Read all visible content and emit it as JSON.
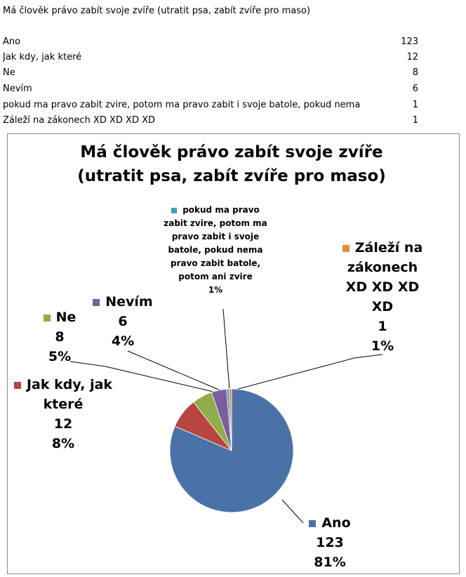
{
  "table": {
    "title": "Má člověk právo zabít svoje zvíře (utratit psa, zabít zvíře pro maso)",
    "rows": [
      [
        "Ano",
        123
      ],
      [
        "Jak kdy, jak které",
        12
      ],
      [
        "Ne",
        8
      ],
      [
        "Nevím",
        6
      ],
      [
        "pokud ma pravo zabit zvire, potom ma pravo zabit i svoje batole, pokud nema",
        1
      ],
      [
        "Záleží na zákonech XD XD XD XD",
        1
      ]
    ]
  },
  "chart_data": {
    "type": "pie",
    "title": "Má člověk právo zabít svoje zvíře (utratit psa, zabít zvíře pro maso)",
    "categories": [
      "Ano",
      "Jak kdy, jak které",
      "Ne",
      "Nevím",
      "pokud ma pravo zabit zvire, potom ma pravo zabit i svoje batole, pokud nema pravo zabit batole, potom ani zvire",
      "Záleží na zákonech XD XD XD XD"
    ],
    "values": [
      123,
      12,
      8,
      6,
      1,
      1
    ],
    "percent_labels": [
      "81%",
      "8%",
      "5%",
      "4%",
      "1%",
      "1%"
    ],
    "colors": [
      "#4a72a8",
      "#b84540",
      "#8fae4a",
      "#7a5ea0",
      "#3ea0bd",
      "#e8893a"
    ]
  }
}
